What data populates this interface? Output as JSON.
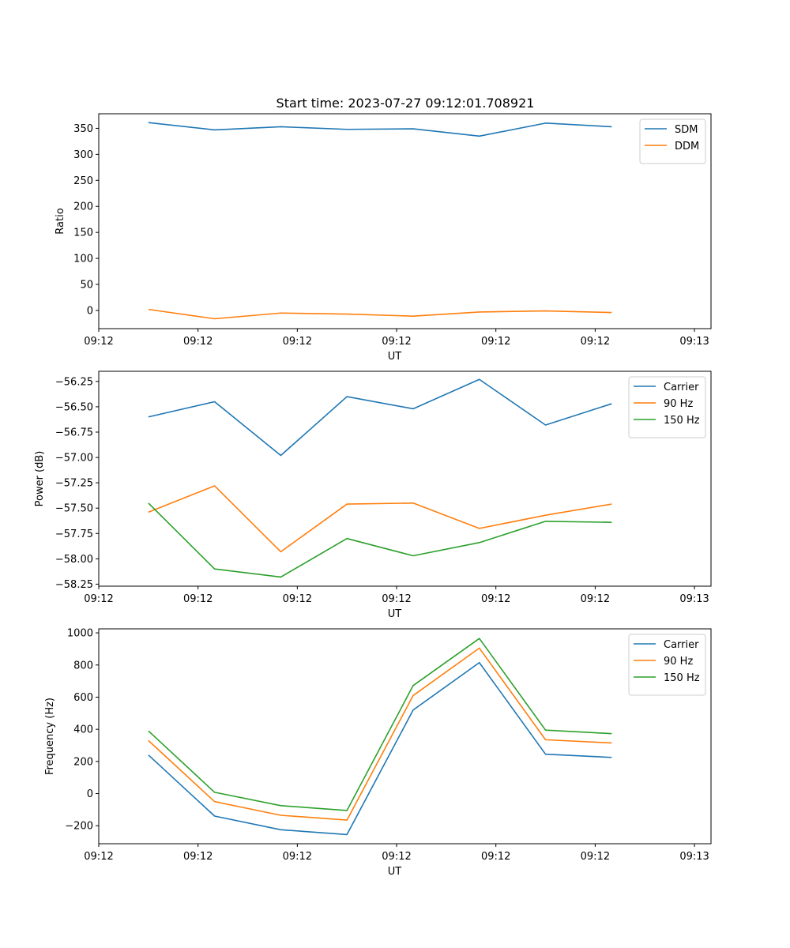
{
  "figure_title": "Start time: 2023-07-27 09:12:01.708921",
  "chart_data": [
    {
      "type": "line",
      "title": "Start time: 2023-07-27 09:12:01.708921",
      "xlabel": "UT",
      "ylabel": "Ratio",
      "ylim": [
        -35,
        378
      ],
      "xlim": [
        -0.75,
        8.5
      ],
      "x": [
        0,
        1,
        2,
        3,
        4,
        5,
        6,
        7
      ],
      "x_ticks": [
        -0.75,
        0.75,
        2.25,
        3.75,
        5.25,
        6.75,
        8.25
      ],
      "x_tick_labels": [
        "09:12",
        "09:12",
        "09:12",
        "09:12",
        "09:12",
        "09:12",
        "09:13"
      ],
      "y_ticks": [
        0,
        50,
        100,
        150,
        200,
        250,
        300,
        350
      ],
      "y_tick_labels": [
        "0",
        "50",
        "100",
        "150",
        "200",
        "250",
        "300",
        "350"
      ],
      "legend_position": "top-right",
      "series": [
        {
          "name": "SDM",
          "color": "#1f77b4",
          "values": [
            361,
            347,
            353,
            348,
            349,
            335,
            360,
            353
          ]
        },
        {
          "name": "DDM",
          "color": "#ff7f0e",
          "values": [
            2,
            -16,
            -5,
            -7,
            -11,
            -3,
            -1,
            -4
          ]
        }
      ]
    },
    {
      "type": "line",
      "title": "",
      "xlabel": "UT",
      "ylabel": "Power (dB)",
      "ylim": [
        -58.27,
        -56.15
      ],
      "xlim": [
        -0.75,
        8.5
      ],
      "x": [
        0,
        1,
        2,
        3,
        4,
        5,
        6,
        7
      ],
      "x_ticks": [
        -0.75,
        0.75,
        2.25,
        3.75,
        5.25,
        6.75,
        8.25
      ],
      "x_tick_labels": [
        "09:12",
        "09:12",
        "09:12",
        "09:12",
        "09:12",
        "09:12",
        "09:13"
      ],
      "y_ticks": [
        -58.25,
        -58.0,
        -57.75,
        -57.5,
        -57.25,
        -57.0,
        -56.75,
        -56.5,
        -56.25
      ],
      "y_tick_labels": [
        "−58.25",
        "−58.00",
        "−57.75",
        "−57.50",
        "−57.25",
        "−57.00",
        "−56.75",
        "−56.50",
        "−56.25"
      ],
      "legend_position": "top-right",
      "series": [
        {
          "name": "Carrier",
          "color": "#1f77b4",
          "values": [
            -56.6,
            -56.45,
            -56.98,
            -56.4,
            -56.52,
            -56.23,
            -56.68,
            -56.47
          ]
        },
        {
          "name": "90 Hz",
          "color": "#ff7f0e",
          "values": [
            -57.54,
            -57.28,
            -57.93,
            -57.46,
            -57.45,
            -57.7,
            -57.57,
            -57.46
          ]
        },
        {
          "name": "150 Hz",
          "color": "#2ca02c",
          "values": [
            -57.45,
            -58.1,
            -58.18,
            -57.8,
            -57.97,
            -57.84,
            -57.63,
            -57.64
          ]
        }
      ]
    },
    {
      "type": "line",
      "title": "",
      "xlabel": "UT",
      "ylabel": "Frequency (Hz)",
      "ylim": [
        -312,
        1025
      ],
      "xlim": [
        -0.75,
        8.5
      ],
      "x": [
        0,
        1,
        2,
        3,
        4,
        5,
        6,
        7
      ],
      "x_ticks": [
        -0.75,
        0.75,
        2.25,
        3.75,
        5.25,
        6.75,
        8.25
      ],
      "x_tick_labels": [
        "09:12",
        "09:12",
        "09:12",
        "09:12",
        "09:12",
        "09:12",
        "09:13"
      ],
      "y_ticks": [
        -200,
        0,
        200,
        400,
        600,
        800,
        1000
      ],
      "y_tick_labels": [
        "−200",
        "0",
        "200",
        "400",
        "600",
        "800",
        "1000"
      ],
      "legend_position": "top-right",
      "series": [
        {
          "name": "Carrier",
          "color": "#1f77b4",
          "values": [
            240,
            -140,
            -225,
            -255,
            520,
            815,
            245,
            225
          ]
        },
        {
          "name": "90 Hz",
          "color": "#ff7f0e",
          "values": [
            330,
            -50,
            -135,
            -165,
            610,
            905,
            335,
            315
          ]
        },
        {
          "name": "150 Hz",
          "color": "#2ca02c",
          "values": [
            390,
            8,
            -75,
            -105,
            672,
            965,
            395,
            373
          ]
        }
      ]
    }
  ]
}
